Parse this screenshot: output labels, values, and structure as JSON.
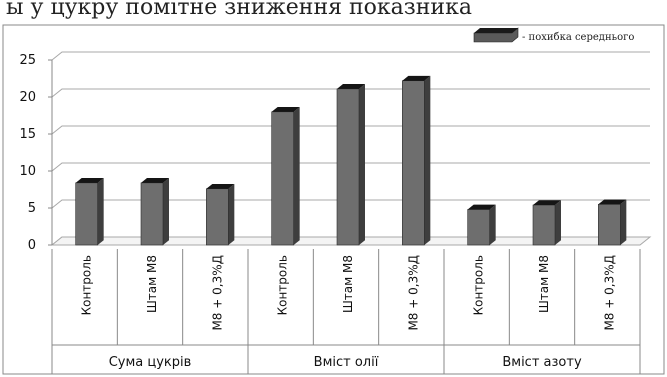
{
  "caption_fragment": "ы у цукру помітне зниження показника",
  "legend": {
    "label": "- похибка середнього"
  },
  "colors": {
    "bar": "#6e6e6e",
    "bar_dark": "#3e3e3e",
    "bar_top": "#151515",
    "frame": "#888888",
    "grid": "#a8a8a8"
  },
  "chart_data": {
    "type": "bar",
    "title": "",
    "ylim": [
      0,
      25
    ],
    "yticks": [
      0,
      5,
      10,
      15,
      20,
      25
    ],
    "grid": true,
    "legend_position": "top-right",
    "groups": [
      {
        "name": "Сума цукрів",
        "categories": [
          "Контроль",
          "Штам М8",
          "М8 + 0,3%Д"
        ],
        "values": [
          8.4,
          8.4,
          7.6
        ]
      },
      {
        "name": "Вміст олії",
        "categories": [
          "Контроль",
          "Штам М8",
          "М8 + 0,3%Д"
        ],
        "values": [
          18.0,
          21.1,
          22.2
        ]
      },
      {
        "name": "Вміст азоту",
        "categories": [
          "Контроль",
          "Штам М8",
          "М8 + 0,3%Д"
        ],
        "values": [
          4.8,
          5.4,
          5.5
        ]
      }
    ]
  }
}
